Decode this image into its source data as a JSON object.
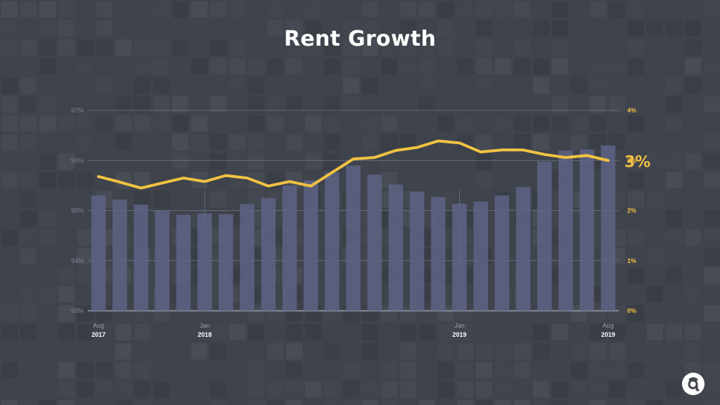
{
  "title": "Rent Growth",
  "logo": {
    "icon": "apartments-logo-icon"
  },
  "chart_data": {
    "type": "bar+line",
    "title": "Rent Growth",
    "left_axis": {
      "ticks": [
        "93%",
        "94%",
        "95%",
        "96%",
        "97%"
      ],
      "range": [
        93,
        97
      ]
    },
    "right_axis": {
      "ticks": [
        "0%",
        "1%",
        "2%",
        "3%",
        "4%"
      ],
      "range": [
        0,
        4
      ]
    },
    "x_labels": [
      {
        "index": 0,
        "month": "Aug",
        "year": "2017"
      },
      {
        "index": 5,
        "month": "Jan",
        "year": "2018"
      },
      {
        "index": 17,
        "month": "Jan",
        "year": "2019"
      },
      {
        "index": 24,
        "month": "Aug",
        "year": "2019"
      }
    ],
    "months": [
      "Aug 2017",
      "Sep 2017",
      "Oct 2017",
      "Nov 2017",
      "Dec 2017",
      "Jan 2018",
      "Feb 2018",
      "Mar 2018",
      "Apr 2018",
      "May 2018",
      "Jun 2018",
      "Jul 2018",
      "Aug 2018",
      "Sep 2018",
      "Oct 2018",
      "Nov 2018",
      "Dec 2018",
      "Jan 2019",
      "Feb 2019",
      "Mar 2019",
      "Apr 2019",
      "May 2019",
      "Jun 2019",
      "Jul 2019",
      "Aug 2019"
    ],
    "bar_series": {
      "axis": "left",
      "values": [
        95.3,
        95.22,
        95.12,
        95.0,
        94.92,
        94.94,
        94.93,
        95.13,
        95.25,
        95.5,
        95.6,
        95.76,
        95.9,
        95.72,
        95.52,
        95.38,
        95.27,
        95.14,
        95.18,
        95.3,
        95.47,
        95.98,
        96.2,
        96.22,
        96.3
      ]
    },
    "line_series": {
      "axis": "right",
      "values": [
        2.68,
        2.57,
        2.45,
        2.55,
        2.65,
        2.58,
        2.7,
        2.65,
        2.49,
        2.58,
        2.49,
        2.76,
        3.03,
        3.06,
        3.2,
        3.26,
        3.39,
        3.35,
        3.17,
        3.21,
        3.21,
        3.12,
        3.06,
        3.1,
        3.0
      ],
      "end_label": "3%"
    },
    "grid": true,
    "legend": "none",
    "colors": {
      "bars": "#5f6488",
      "line": "#f2c242",
      "right_axis_text": "#f2c242",
      "left_axis_text": "#7f8496"
    }
  }
}
